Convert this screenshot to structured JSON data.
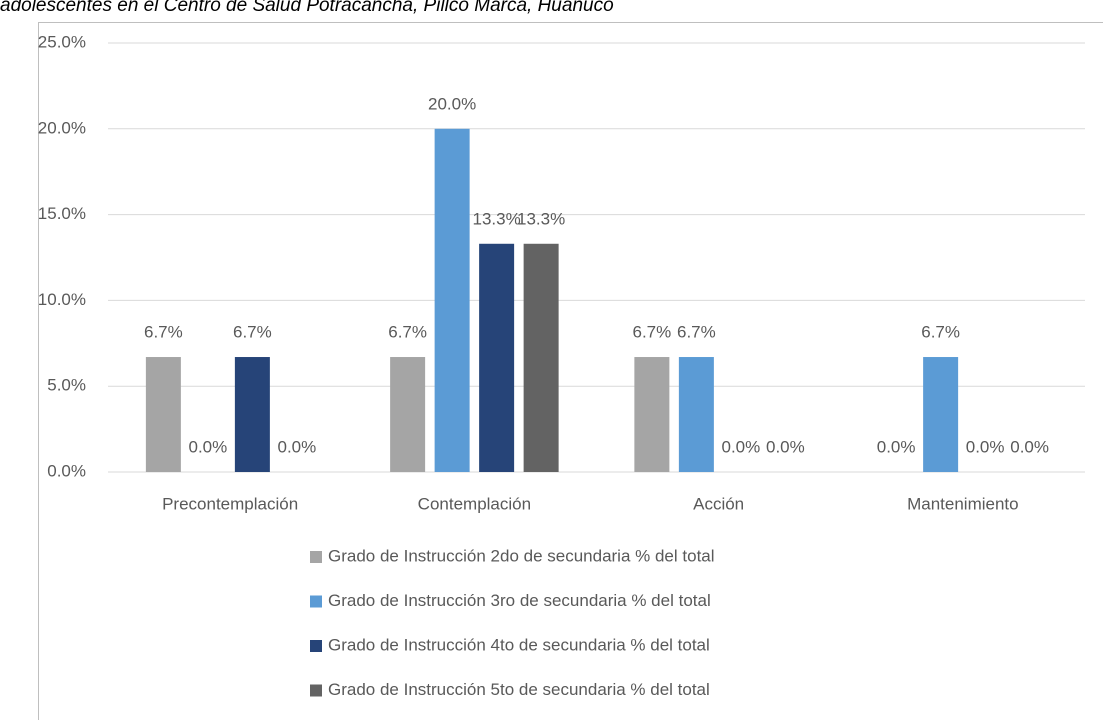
{
  "chart_data": {
    "type": "bar",
    "title": "adolescentes en el Centro de Salud Potracancha, Pillco Marca, Huánuco",
    "categories": [
      "Precontemplación",
      "Contemplación",
      "Acción",
      "Mantenimiento"
    ],
    "ylim": [
      0,
      25
    ],
    "yticks": [
      {
        "value": 0,
        "label": "0.0%"
      },
      {
        "value": 5,
        "label": "5.0%"
      },
      {
        "value": 10,
        "label": "10.0%"
      },
      {
        "value": 15,
        "label": "15.0%"
      },
      {
        "value": 20,
        "label": "20.0%"
      },
      {
        "value": 25,
        "label": "25.0%"
      }
    ],
    "grid": true,
    "legend": "bottom",
    "series": [
      {
        "name": "Grado de Instrucción 2do de secundaria % del total",
        "color": "#a5a5a5",
        "values": [
          6.7,
          6.7,
          6.7,
          0.0
        ],
        "value_labels": [
          "6.7%",
          "6.7%",
          "6.7%",
          "0.0%"
        ]
      },
      {
        "name": "Grado de Instrucción 3ro de secundaria % del total",
        "color": "#5b9bd5",
        "values": [
          0.0,
          20.0,
          6.7,
          6.7
        ],
        "value_labels": [
          "0.0%",
          "20.0%",
          "6.7%",
          "6.7%"
        ]
      },
      {
        "name": "Grado de Instrucción 4to de secundaria % del total",
        "color": "#264478",
        "values": [
          6.7,
          13.3,
          0.0,
          0.0
        ],
        "value_labels": [
          "6.7%",
          "13.3%",
          "0.0%",
          "0.0%"
        ]
      },
      {
        "name": "Grado de Instrucción 5to de secundaria % del total",
        "color": "#636363",
        "values": [
          0.0,
          13.3,
          0.0,
          0.0
        ],
        "value_labels": [
          "0.0%",
          "13.3%",
          "0.0%",
          "0.0%"
        ]
      }
    ]
  }
}
